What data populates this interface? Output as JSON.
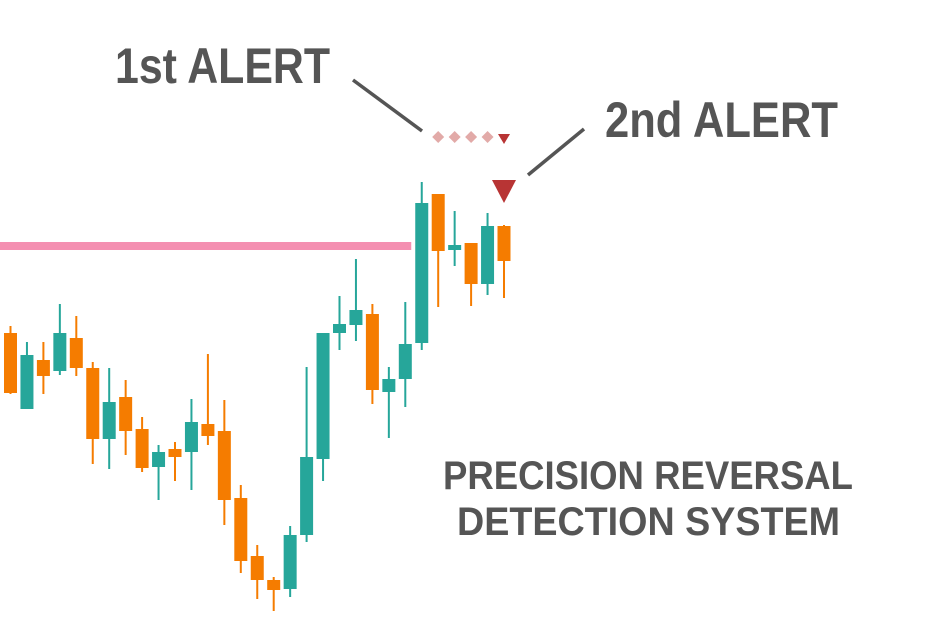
{
  "annotations": {
    "first_alert": "1st ALERT",
    "second_alert": "2nd ALERT",
    "title_line1": "PRECISION REVERSAL",
    "title_line2": "DETECTION SYSTEM"
  },
  "colors": {
    "bullish": "#26a69a",
    "bearish": "#f57c00",
    "resistance_level": "#f48fb1",
    "first_alert_marker": "#e2aaa8",
    "second_alert_marker": "#b83434",
    "text": "#555555"
  },
  "chart_data": {
    "type": "candlestick",
    "title": "",
    "xlabel": "",
    "ylabel": "",
    "axes_visible": false,
    "grid": false,
    "ylim": [
      0,
      63
    ],
    "ohlc": [
      [
        29.7,
        30.4,
        23.6,
        23.7
      ],
      [
        22.1,
        28.8,
        22.1,
        27.5
      ],
      [
        27.0,
        28.8,
        23.6,
        25.4
      ],
      [
        25.9,
        32.6,
        25.5,
        29.7
      ],
      [
        29.2,
        31.4,
        25.4,
        26.2
      ],
      [
        26.2,
        26.8,
        16.6,
        19.1
      ],
      [
        19.1,
        26.2,
        16.1,
        22.8
      ],
      [
        23.3,
        25.0,
        17.5,
        19.9
      ],
      [
        20.1,
        21.3,
        15.8,
        16.2
      ],
      [
        16.3,
        18.5,
        13.0,
        17.8
      ],
      [
        18.1,
        18.8,
        14.9,
        17.3
      ],
      [
        17.8,
        23.1,
        14.0,
        20.8
      ],
      [
        20.6,
        27.6,
        18.5,
        19.4
      ],
      [
        19.9,
        23.0,
        10.5,
        13.0
      ],
      [
        13.2,
        14.5,
        5.7,
        6.9
      ],
      [
        7.4,
        8.5,
        3.1,
        5.0
      ],
      [
        5.0,
        5.3,
        1.9,
        4.0
      ],
      [
        4.1,
        10.4,
        3.3,
        9.5
      ],
      [
        9.5,
        26.3,
        8.8,
        17.3
      ],
      [
        17.1,
        29.7,
        14.9,
        29.7
      ],
      [
        29.7,
        33.4,
        28.0,
        30.6
      ],
      [
        30.5,
        37.1,
        28.9,
        32.0
      ],
      [
        31.6,
        32.6,
        22.6,
        24.0
      ],
      [
        23.8,
        26.3,
        19.2,
        25.1
      ],
      [
        25.1,
        32.8,
        22.3,
        28.6
      ],
      [
        28.7,
        44.8,
        28.0,
        42.7
      ],
      [
        43.6,
        43.6,
        32.3,
        37.9
      ],
      [
        38.0,
        41.9,
        36.4,
        38.5
      ],
      [
        38.7,
        38.7,
        32.4,
        34.6
      ],
      [
        34.6,
        41.7,
        33.5,
        40.4
      ],
      [
        40.4,
        40.5,
        33.2,
        36.9
      ]
    ],
    "ohlc_order": [
      "open",
      "high",
      "low",
      "close"
    ],
    "resistance_level": {
      "price": 38.4,
      "from_index": 0,
      "to_index": 25
    },
    "first_alert_markers": {
      "shape": "diamond",
      "indices": [
        26,
        27,
        28,
        29
      ],
      "price": 49.3
    },
    "first_alert_small_triangle": {
      "shape": "triangle-down",
      "index": 30,
      "price": 49.1
    },
    "second_alert_triangle": {
      "shape": "triangle-down",
      "index": 30,
      "price": 44.0
    }
  }
}
